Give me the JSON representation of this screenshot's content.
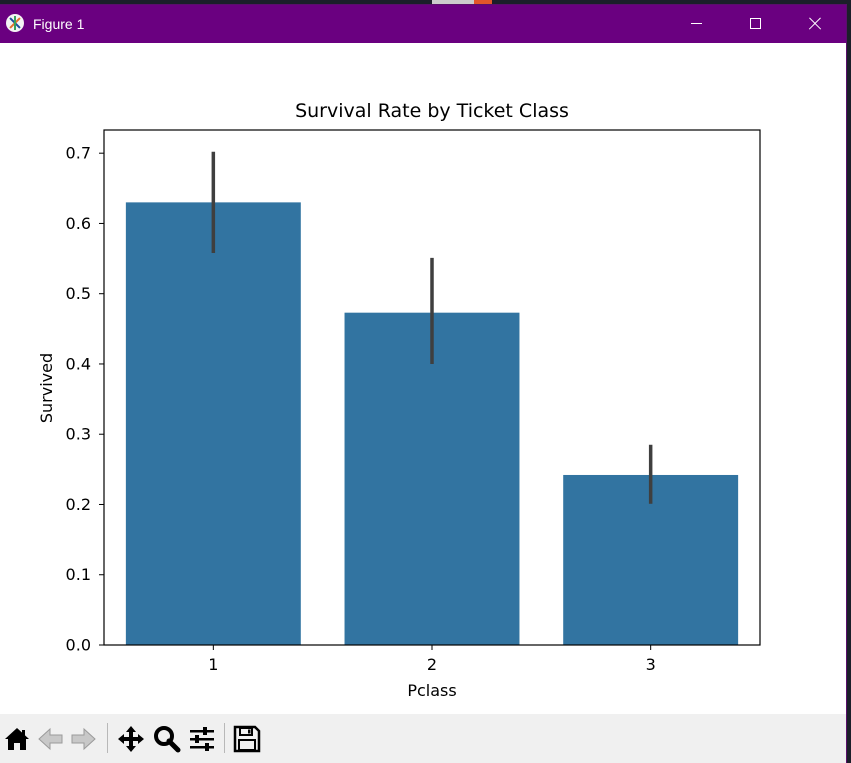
{
  "window": {
    "title": "Figure 1",
    "controls": [
      "minimize",
      "maximize",
      "close"
    ]
  },
  "toolbar": {
    "buttons": [
      {
        "name": "home",
        "icon": "home-icon"
      },
      {
        "name": "back",
        "icon": "arrow-left-icon"
      },
      {
        "name": "forward",
        "icon": "arrow-right-icon"
      },
      {
        "name": "pan",
        "icon": "move-icon"
      },
      {
        "name": "zoom",
        "icon": "magnifier-icon"
      },
      {
        "name": "configure-subplots",
        "icon": "sliders-icon"
      },
      {
        "name": "save",
        "icon": "floppy-disk-icon"
      }
    ]
  },
  "colors": {
    "titlebar": "#6a0080",
    "bar": "#3274a1",
    "errorbar": "#3f3f3f"
  },
  "chart_data": {
    "type": "bar",
    "title": "Survival Rate by Ticket Class",
    "xlabel": "Pclass",
    "ylabel": "Survived",
    "categories": [
      "1",
      "2",
      "3"
    ],
    "values": [
      0.63,
      0.473,
      0.242
    ],
    "error_low": [
      0.558,
      0.4,
      0.201
    ],
    "error_high": [
      0.702,
      0.551,
      0.285
    ],
    "ylim": [
      0,
      0.733
    ],
    "yticks": [
      0.0,
      0.1,
      0.2,
      0.3,
      0.4,
      0.5,
      0.6,
      0.7
    ],
    "ytick_labels": [
      "0.0",
      "0.1",
      "0.2",
      "0.3",
      "0.4",
      "0.5",
      "0.6",
      "0.7"
    ],
    "grid": false,
    "legend": "none"
  }
}
